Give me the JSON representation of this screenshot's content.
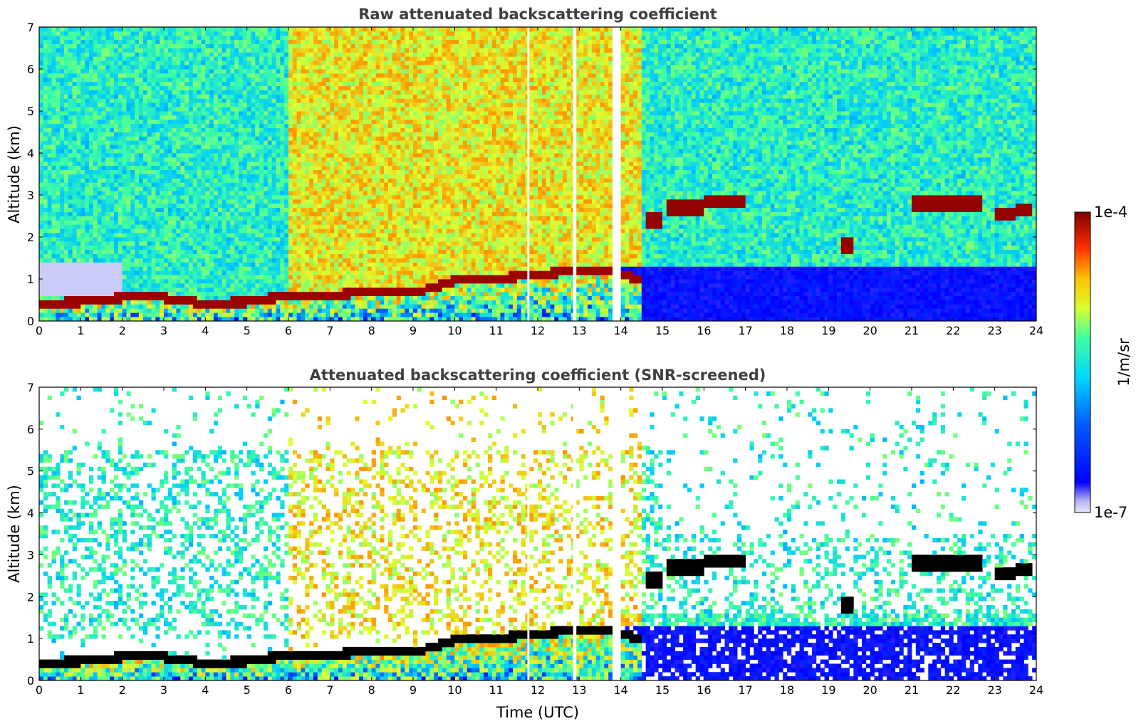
{
  "chart_data": [
    {
      "type": "heatmap",
      "title": "Raw attenuated backscattering coefficient",
      "xlabel": "",
      "ylabel": "Altitude (km)",
      "xlim": [
        0,
        24
      ],
      "ylim": [
        0,
        7
      ],
      "xticks": [
        "0",
        "1",
        "2",
        "3",
        "4",
        "5",
        "6",
        "7",
        "8",
        "9",
        "10",
        "11",
        "12",
        "13",
        "14",
        "15",
        "16",
        "17",
        "18",
        "19",
        "20",
        "21",
        "22",
        "23",
        "24"
      ],
      "yticks": [
        "0",
        "1",
        "2",
        "3",
        "4",
        "5",
        "6",
        "7"
      ],
      "boundary_layer_top_km": [
        [
          0,
          0.4
        ],
        [
          1,
          0.45
        ],
        [
          2,
          0.55
        ],
        [
          3,
          0.55
        ],
        [
          4,
          0.4
        ],
        [
          5,
          0.45
        ],
        [
          6,
          0.6
        ],
        [
          7,
          0.6
        ],
        [
          8,
          0.7
        ],
        [
          9,
          0.65
        ],
        [
          10,
          0.95
        ],
        [
          11,
          1.0
        ],
        [
          12,
          1.1
        ],
        [
          13,
          1.2
        ],
        [
          13.8,
          1.2
        ],
        [
          14.5,
          0.95
        ]
      ],
      "cloud_layers": [
        {
          "t_start": 14.7,
          "t_end": 14.9,
          "alt_km": 2.4
        },
        {
          "t_start": 15.2,
          "t_end": 15.9,
          "alt_km": 2.7
        },
        {
          "t_start": 16.1,
          "t_end": 16.9,
          "alt_km": 2.85
        },
        {
          "t_start": 19.4,
          "t_end": 19.5,
          "alt_km": 1.8
        },
        {
          "t_start": 21.1,
          "t_end": 22.6,
          "alt_km": 2.8
        },
        {
          "t_start": 23.1,
          "t_end": 23.4,
          "alt_km": 2.55
        },
        {
          "t_start": 23.6,
          "t_end": 23.8,
          "alt_km": 2.65
        }
      ]
    },
    {
      "type": "heatmap",
      "title": "Attenuated backscattering coefficient (SNR-screened)",
      "xlabel": "Time (UTC)",
      "ylabel": "Altitude (km)",
      "xlim": [
        0,
        24
      ],
      "ylim": [
        0,
        7
      ],
      "xticks": [
        "0",
        "1",
        "2",
        "3",
        "4",
        "5",
        "6",
        "7",
        "8",
        "9",
        "10",
        "11",
        "12",
        "13",
        "14",
        "15",
        "16",
        "17",
        "18",
        "19",
        "20",
        "21",
        "22",
        "23",
        "24"
      ],
      "yticks": [
        "0",
        "1",
        "2",
        "3",
        "4",
        "5",
        "6",
        "7"
      ]
    }
  ],
  "colorbar": {
    "label": "1/m/sr",
    "max_label": "1e-4",
    "min_label": "1e-7",
    "colormap": [
      "#ececf8",
      "#0000ff",
      "#00c8ff",
      "#40ffa0",
      "#e0ff30",
      "#ff9000",
      "#ff1000",
      "#800000"
    ]
  }
}
